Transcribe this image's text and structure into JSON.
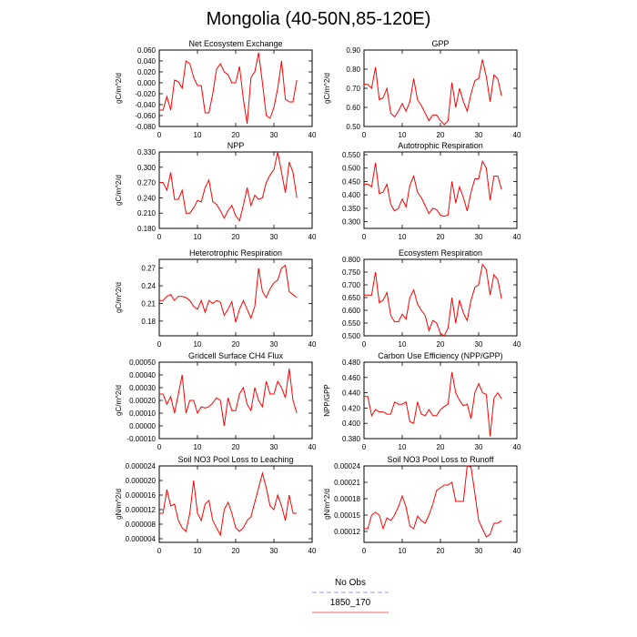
{
  "page": {
    "title": "Mongolia (40-50N,85-120E)"
  },
  "legend": {
    "items": [
      {
        "label": "No Obs",
        "color": "#9999ff",
        "dash": true
      },
      {
        "label": "1850_170",
        "color": "#ff6666",
        "dash": false
      }
    ]
  },
  "chart_data": [
    {
      "type": "line",
      "title": "Net Ecosystem Exchange",
      "ylabel": "gC/m^2/d",
      "xlim": [
        0,
        40
      ],
      "ylim": [
        -0.08,
        0.06
      ],
      "xticks": [
        0,
        10,
        20,
        30,
        40
      ],
      "yticks": [
        -0.08,
        -0.06,
        -0.04,
        -0.02,
        0.0,
        0.02,
        0.04,
        0.06
      ],
      "ytick_labels": [
        "-0.080",
        "-0.060",
        "-0.040",
        "-0.020",
        "0.000",
        "0.020",
        "0.040",
        "0.060"
      ],
      "series": [
        {
          "color": "#ff0000",
          "x": [
            0,
            1,
            2,
            3,
            4,
            5,
            6,
            7,
            8,
            9,
            10,
            11,
            12,
            13,
            14,
            15,
            16,
            17,
            18,
            19,
            20,
            21,
            22,
            23,
            24,
            25,
            26,
            27,
            28,
            29,
            30,
            31,
            32,
            33,
            34,
            35,
            36
          ],
          "y": [
            -0.05,
            -0.05,
            -0.025,
            -0.05,
            0.005,
            0.002,
            -0.01,
            0.04,
            0.035,
            0.01,
            -0.005,
            -0.005,
            -0.055,
            -0.055,
            -0.02,
            0.025,
            0.035,
            0.02,
            0.015,
            0.0,
            0.0,
            0.03,
            -0.03,
            -0.075,
            0.01,
            0.02,
            0.055,
            0.0,
            -0.06,
            -0.065,
            -0.045,
            -0.01,
            0.04,
            -0.03,
            -0.035,
            -0.035,
            0.005
          ]
        }
      ]
    },
    {
      "type": "line",
      "title": "GPP",
      "ylabel": "gC/m^2/d",
      "xlim": [
        0,
        40
      ],
      "ylim": [
        0.5,
        0.9
      ],
      "xticks": [
        0,
        10,
        20,
        30,
        40
      ],
      "yticks": [
        0.5,
        0.6,
        0.7,
        0.8,
        0.9
      ],
      "ytick_labels": [
        "0.50",
        "0.60",
        "0.70",
        "0.80",
        "0.90"
      ],
      "series": [
        {
          "color": "#ff0000",
          "x": [
            0,
            1,
            2,
            3,
            4,
            5,
            6,
            7,
            8,
            9,
            10,
            11,
            12,
            13,
            14,
            15,
            16,
            17,
            18,
            19,
            20,
            21,
            22,
            23,
            24,
            25,
            26,
            27,
            28,
            29,
            30,
            31,
            32,
            33,
            34,
            35,
            36
          ],
          "y": [
            0.72,
            0.72,
            0.7,
            0.81,
            0.64,
            0.65,
            0.7,
            0.57,
            0.55,
            0.58,
            0.62,
            0.58,
            0.63,
            0.75,
            0.64,
            0.61,
            0.57,
            0.53,
            0.56,
            0.56,
            0.53,
            0.51,
            0.53,
            0.73,
            0.6,
            0.7,
            0.63,
            0.58,
            0.67,
            0.74,
            0.75,
            0.85,
            0.76,
            0.63,
            0.77,
            0.75,
            0.66
          ]
        }
      ]
    },
    {
      "type": "line",
      "title": "NPP",
      "ylabel": "gC/m^2/d",
      "xlim": [
        0,
        40
      ],
      "ylim": [
        0.18,
        0.33
      ],
      "xticks": [
        0,
        10,
        20,
        30,
        40
      ],
      "yticks": [
        0.18,
        0.21,
        0.24,
        0.27,
        0.3,
        0.33
      ],
      "ytick_labels": [
        "0.180",
        "0.210",
        "0.240",
        "0.270",
        "0.300",
        "0.330"
      ],
      "series": [
        {
          "color": "#ff0000",
          "x": [
            0,
            1,
            2,
            3,
            4,
            5,
            6,
            7,
            8,
            9,
            10,
            11,
            12,
            13,
            14,
            15,
            16,
            17,
            18,
            19,
            20,
            21,
            22,
            23,
            24,
            25,
            26,
            27,
            28,
            29,
            30,
            31,
            32,
            33,
            34,
            35,
            36
          ],
          "y": [
            0.27,
            0.27,
            0.255,
            0.29,
            0.237,
            0.237,
            0.255,
            0.21,
            0.21,
            0.22,
            0.235,
            0.232,
            0.26,
            0.275,
            0.233,
            0.227,
            0.215,
            0.2,
            0.215,
            0.225,
            0.205,
            0.195,
            0.225,
            0.26,
            0.225,
            0.245,
            0.237,
            0.24,
            0.27,
            0.285,
            0.295,
            0.33,
            0.29,
            0.25,
            0.31,
            0.29,
            0.24
          ]
        }
      ]
    },
    {
      "type": "line",
      "title": "Autotrophic Respiration",
      "ylabel": "",
      "xlim": [
        0,
        40
      ],
      "ylim": [
        0.275,
        0.56
      ],
      "xticks": [
        0,
        10,
        20,
        30,
        40
      ],
      "yticks": [
        0.3,
        0.35,
        0.4,
        0.45,
        0.5,
        0.55
      ],
      "ytick_labels": [
        "0.300",
        "0.350",
        "0.400",
        "0.450",
        "0.500",
        "0.550"
      ],
      "series": [
        {
          "color": "#ff0000",
          "x": [
            0,
            1,
            2,
            3,
            4,
            5,
            6,
            7,
            8,
            9,
            10,
            11,
            12,
            13,
            14,
            15,
            16,
            17,
            18,
            19,
            20,
            21,
            22,
            23,
            24,
            25,
            26,
            27,
            28,
            29,
            30,
            31,
            32,
            33,
            34,
            35,
            36
          ],
          "y": [
            0.44,
            0.44,
            0.43,
            0.52,
            0.405,
            0.41,
            0.44,
            0.365,
            0.34,
            0.35,
            0.385,
            0.355,
            0.435,
            0.47,
            0.41,
            0.39,
            0.36,
            0.33,
            0.35,
            0.345,
            0.325,
            0.32,
            0.325,
            0.45,
            0.37,
            0.43,
            0.39,
            0.34,
            0.41,
            0.46,
            0.46,
            0.525,
            0.5,
            0.38,
            0.47,
            0.47,
            0.42
          ]
        }
      ]
    },
    {
      "type": "line",
      "title": "Heterotrophic Respiration",
      "ylabel": "gC/m^2/d",
      "xlim": [
        0,
        40
      ],
      "ylim": [
        0.155,
        0.285
      ],
      "xticks": [
        0,
        10,
        20,
        30,
        40
      ],
      "yticks": [
        0.18,
        0.21,
        0.24,
        0.27
      ],
      "ytick_labels": [
        "0.18",
        "0.21",
        "0.24",
        "0.27"
      ],
      "series": [
        {
          "color": "#ff0000",
          "x": [
            0,
            1,
            2,
            3,
            4,
            5,
            6,
            7,
            8,
            9,
            10,
            11,
            12,
            13,
            14,
            15,
            16,
            17,
            18,
            19,
            20,
            21,
            22,
            23,
            24,
            25,
            26,
            27,
            28,
            29,
            30,
            31,
            32,
            33,
            34,
            35,
            36
          ],
          "y": [
            0.215,
            0.215,
            0.222,
            0.225,
            0.215,
            0.222,
            0.222,
            0.22,
            0.215,
            0.205,
            0.2,
            0.215,
            0.195,
            0.215,
            0.21,
            0.215,
            0.212,
            0.19,
            0.2,
            0.213,
            0.178,
            0.2,
            0.215,
            0.2,
            0.185,
            0.205,
            0.27,
            0.23,
            0.22,
            0.235,
            0.245,
            0.25,
            0.27,
            0.275,
            0.23,
            0.225,
            0.22
          ]
        }
      ]
    },
    {
      "type": "line",
      "title": "Ecosystem Respiration",
      "ylabel": "",
      "xlim": [
        0,
        40
      ],
      "ylim": [
        0.5,
        0.8
      ],
      "xticks": [
        0,
        10,
        20,
        30,
        40
      ],
      "yticks": [
        0.5,
        0.55,
        0.6,
        0.65,
        0.7,
        0.75,
        0.8
      ],
      "ytick_labels": [
        "0.500",
        "0.550",
        "0.600",
        "0.650",
        "0.700",
        "0.750",
        "0.800"
      ],
      "series": [
        {
          "color": "#ff0000",
          "x": [
            0,
            1,
            2,
            3,
            4,
            5,
            6,
            7,
            8,
            9,
            10,
            11,
            12,
            13,
            14,
            15,
            16,
            17,
            18,
            19,
            20,
            21,
            22,
            23,
            24,
            25,
            26,
            27,
            28,
            29,
            30,
            31,
            32,
            33,
            34,
            35,
            36
          ],
          "y": [
            0.66,
            0.66,
            0.66,
            0.75,
            0.63,
            0.64,
            0.67,
            0.58,
            0.555,
            0.555,
            0.585,
            0.565,
            0.65,
            0.68,
            0.625,
            0.6,
            0.58,
            0.52,
            0.56,
            0.55,
            0.51,
            0.5,
            0.53,
            0.65,
            0.55,
            0.64,
            0.59,
            0.56,
            0.64,
            0.69,
            0.7,
            0.78,
            0.76,
            0.66,
            0.74,
            0.72,
            0.645
          ]
        }
      ]
    },
    {
      "type": "line",
      "title": "Gridcell Surface CH4 Flux",
      "ylabel": "gC/m^2/d",
      "xlim": [
        0,
        40
      ],
      "ylim": [
        -0.0001,
        0.0005
      ],
      "xticks": [
        0,
        10,
        20,
        30,
        40
      ],
      "yticks": [
        -0.0001,
        0.0,
        0.0001,
        0.0002,
        0.0003,
        0.0004,
        0.0005
      ],
      "ytick_labels": [
        "-0.00010",
        "0.00000",
        "0.00010",
        "0.00020",
        "0.00030",
        "0.00040",
        "0.00050"
      ],
      "series": [
        {
          "color": "#ff0000",
          "x": [
            0,
            1,
            2,
            3,
            4,
            5,
            6,
            7,
            8,
            9,
            10,
            11,
            12,
            13,
            14,
            15,
            16,
            17,
            18,
            19,
            20,
            21,
            22,
            23,
            24,
            25,
            26,
            27,
            28,
            29,
            30,
            31,
            32,
            33,
            34,
            35,
            36
          ],
          "y": [
            0.00025,
            0.00025,
            0.00017,
            0.00023,
            0.0001,
            0.00025,
            0.0004,
            0.0001,
            0.0002,
            0.0002,
            0.0001,
            0.00015,
            0.00014,
            0.00015,
            0.00018,
            0.00022,
            0.0002,
            0.0,
            0.00022,
            0.00012,
            0.00012,
            0.00025,
            0.0003,
            0.00017,
            0.00012,
            0.0003,
            0.0002,
            0.00015,
            0.00035,
            0.00025,
            0.00025,
            0.00035,
            0.0003,
            0.00022,
            0.00045,
            0.0002,
            0.0001
          ]
        }
      ]
    },
    {
      "type": "line",
      "title": "Carbon Use Efficiency (NPP/GPP)",
      "ylabel": "NPP/GPP",
      "xlim": [
        0,
        40
      ],
      "ylim": [
        0.38,
        0.48
      ],
      "xticks": [
        0,
        10,
        20,
        30,
        40
      ],
      "yticks": [
        0.38,
        0.4,
        0.42,
        0.44,
        0.46,
        0.48
      ],
      "ytick_labels": [
        "0.380",
        "0.400",
        "0.420",
        "0.440",
        "0.460",
        "0.480"
      ],
      "series": [
        {
          "color": "#ff0000",
          "x": [
            0,
            1,
            2,
            3,
            4,
            5,
            6,
            7,
            8,
            9,
            10,
            11,
            12,
            13,
            14,
            15,
            16,
            17,
            18,
            19,
            20,
            21,
            22,
            23,
            24,
            25,
            26,
            27,
            28,
            29,
            30,
            31,
            32,
            33,
            34,
            35,
            36
          ],
          "y": [
            0.435,
            0.435,
            0.41,
            0.418,
            0.415,
            0.415,
            0.412,
            0.412,
            0.428,
            0.425,
            0.425,
            0.428,
            0.402,
            0.4,
            0.428,
            0.412,
            0.41,
            0.418,
            0.41,
            0.41,
            0.418,
            0.422,
            0.425,
            0.467,
            0.44,
            0.43,
            0.423,
            0.425,
            0.406,
            0.44,
            0.452,
            0.44,
            0.438,
            0.383,
            0.433,
            0.44,
            0.432
          ]
        }
      ]
    },
    {
      "type": "line",
      "title": "Soil NO3 Pool Loss to Leaching",
      "ylabel": "gN/m^2/d",
      "xlim": [
        0,
        40
      ],
      "ylim": [
        3e-06,
        2.4e-05
      ],
      "xticks": [
        0,
        10,
        20,
        30,
        40
      ],
      "yticks": [
        4e-06,
        8e-06,
        1.2e-05,
        1.6e-05,
        2e-05,
        2.4e-05
      ],
      "ytick_labels": [
        "0.000004",
        "0.000008",
        "0.000012",
        "0.000016",
        "0.000020",
        "0.000024"
      ],
      "series": [
        {
          "color": "#ff0000",
          "x": [
            0,
            1,
            2,
            3,
            4,
            5,
            6,
            7,
            8,
            9,
            10,
            11,
            12,
            13,
            14,
            15,
            16,
            17,
            18,
            19,
            20,
            21,
            22,
            23,
            24,
            25,
            26,
            27,
            28,
            29,
            30,
            31,
            32,
            33,
            34,
            35,
            36
          ],
          "y": [
            1.1e-05,
            1.1e-05,
            1.75e-05,
            1.3e-05,
            1.35e-05,
            9e-06,
            7e-06,
            6e-06,
            1.1e-05,
            2e-05,
            1.1e-05,
            9e-06,
            1.35e-05,
            1.45e-05,
            9e-06,
            7e-06,
            5e-06,
            1.2e-05,
            1.4e-05,
            1.1e-05,
            7e-06,
            6e-06,
            7e-06,
            9e-06,
            1e-05,
            1.4e-05,
            1.8e-05,
            2.2e-05,
            1.8e-05,
            1.3e-05,
            1.2e-05,
            1.6e-05,
            1.3e-05,
            9e-06,
            1.6e-05,
            1.1e-05,
            1.1e-05
          ]
        }
      ]
    },
    {
      "type": "line",
      "title": "Soil NO3 Pool Loss to Runoff",
      "ylabel": "gN/m^2/d",
      "xlim": [
        0,
        40
      ],
      "ylim": [
        0.0001,
        0.00024
      ],
      "xticks": [
        0,
        10,
        20,
        30,
        40
      ],
      "yticks": [
        0.00012,
        0.00015,
        0.00018,
        0.00021,
        0.00024
      ],
      "ytick_labels": [
        "0.00012",
        "0.00015",
        "0.00018",
        "0.00021",
        "0.00024"
      ],
      "series": [
        {
          "color": "#ff0000",
          "x": [
            0,
            1,
            2,
            3,
            4,
            5,
            6,
            7,
            8,
            9,
            10,
            11,
            12,
            13,
            14,
            15,
            16,
            17,
            18,
            19,
            20,
            21,
            22,
            23,
            24,
            25,
            26,
            27,
            28,
            29,
            30,
            31,
            32,
            33,
            34,
            35,
            36
          ],
          "y": [
            0.000125,
            0.000125,
            0.00015,
            0.000155,
            0.00015,
            0.000125,
            0.000145,
            0.00014,
            0.00015,
            0.000165,
            0.000185,
            0.000165,
            0.00013,
            0.000125,
            0.000148,
            0.00014,
            0.000135,
            0.00015,
            0.00017,
            0.000195,
            0.0002,
            0.000205,
            0.000205,
            0.00021,
            0.000175,
            0.000175,
            0.000175,
            0.00024,
            0.000238,
            0.00019,
            0.00014,
            0.000125,
            0.00011,
            0.000115,
            0.000135,
            0.000135,
            0.00014
          ]
        }
      ]
    }
  ]
}
